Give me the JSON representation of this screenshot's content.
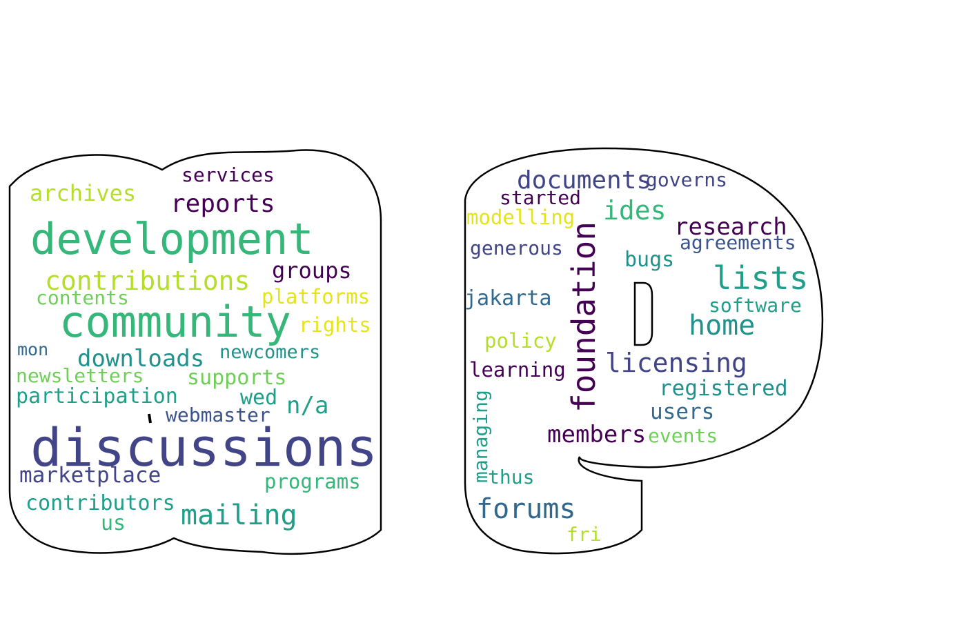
{
  "palette": {
    "dark_purple": "#440154",
    "indigo": "#3b528b",
    "slate_blue": "#414487",
    "steel_blue": "#31688e",
    "teal": "#21918c",
    "sea_green": "#1f9e89",
    "green": "#35b779",
    "light_green": "#6ece58",
    "yellow_green": "#b5de2b",
    "yellow": "#e5e419",
    "outline": "#000000",
    "background": "#ffffff"
  },
  "shapes": [
    "letter-shape-left",
    "letter-shape-right"
  ],
  "words": [
    {
      "text": "services",
      "color": "#440154"
    },
    {
      "text": "archives",
      "color": "#b5de2b"
    },
    {
      "text": "reports",
      "color": "#440154"
    },
    {
      "text": "development",
      "color": "#35b779"
    },
    {
      "text": "groups",
      "color": "#440154"
    },
    {
      "text": "contributions",
      "color": "#b5de2b"
    },
    {
      "text": "contents",
      "color": "#6ece58"
    },
    {
      "text": "platforms",
      "color": "#e5e419"
    },
    {
      "text": "community",
      "color": "#35b779"
    },
    {
      "text": "rights",
      "color": "#e5e419"
    },
    {
      "text": "mon",
      "color": "#31688e"
    },
    {
      "text": "downloads",
      "color": "#21918c"
    },
    {
      "text": "newcomers",
      "color": "#21918c"
    },
    {
      "text": "newsletters",
      "color": "#6ece58"
    },
    {
      "text": "supports",
      "color": "#6ece58"
    },
    {
      "text": "participation",
      "color": "#1f9e89"
    },
    {
      "text": "wed",
      "color": "#1f9e89"
    },
    {
      "text": "n/a",
      "color": "#1f9e89"
    },
    {
      "text": "webmaster",
      "color": "#3b528b"
    },
    {
      "text": "discussions",
      "color": "#414487"
    },
    {
      "text": "marketplace",
      "color": "#414487"
    },
    {
      "text": "programs",
      "color": "#35b779"
    },
    {
      "text": "contributors",
      "color": "#1f9e89"
    },
    {
      "text": "mailing",
      "color": "#1f9e89"
    },
    {
      "text": "us",
      "color": "#35b779"
    },
    {
      "text": "documents",
      "color": "#414487"
    },
    {
      "text": "governs",
      "color": "#414487"
    },
    {
      "text": "started",
      "color": "#440154"
    },
    {
      "text": "modelling",
      "color": "#e5e419"
    },
    {
      "text": "ides",
      "color": "#35b779"
    },
    {
      "text": "research",
      "color": "#440154"
    },
    {
      "text": "agreements",
      "color": "#3b528b"
    },
    {
      "text": "generous",
      "color": "#414487"
    },
    {
      "text": "foundation",
      "color": "#440154"
    },
    {
      "text": "bugs",
      "color": "#21918c"
    },
    {
      "text": "lists",
      "color": "#1f9e89"
    },
    {
      "text": "jakarta",
      "color": "#31688e"
    },
    {
      "text": "software",
      "color": "#1f9e89"
    },
    {
      "text": "home",
      "color": "#21918c"
    },
    {
      "text": "policy",
      "color": "#b5de2b"
    },
    {
      "text": "licensing",
      "color": "#414487"
    },
    {
      "text": "learning",
      "color": "#440154"
    },
    {
      "text": "registered",
      "color": "#21918c"
    },
    {
      "text": "managing",
      "color": "#1f9e89"
    },
    {
      "text": "users",
      "color": "#31688e"
    },
    {
      "text": "members",
      "color": "#440154"
    },
    {
      "text": "events",
      "color": "#6ece58"
    },
    {
      "text": "thus",
      "color": "#1f9e89"
    },
    {
      "text": "forums",
      "color": "#31688e"
    },
    {
      "text": "fri",
      "color": "#b5de2b"
    }
  ]
}
